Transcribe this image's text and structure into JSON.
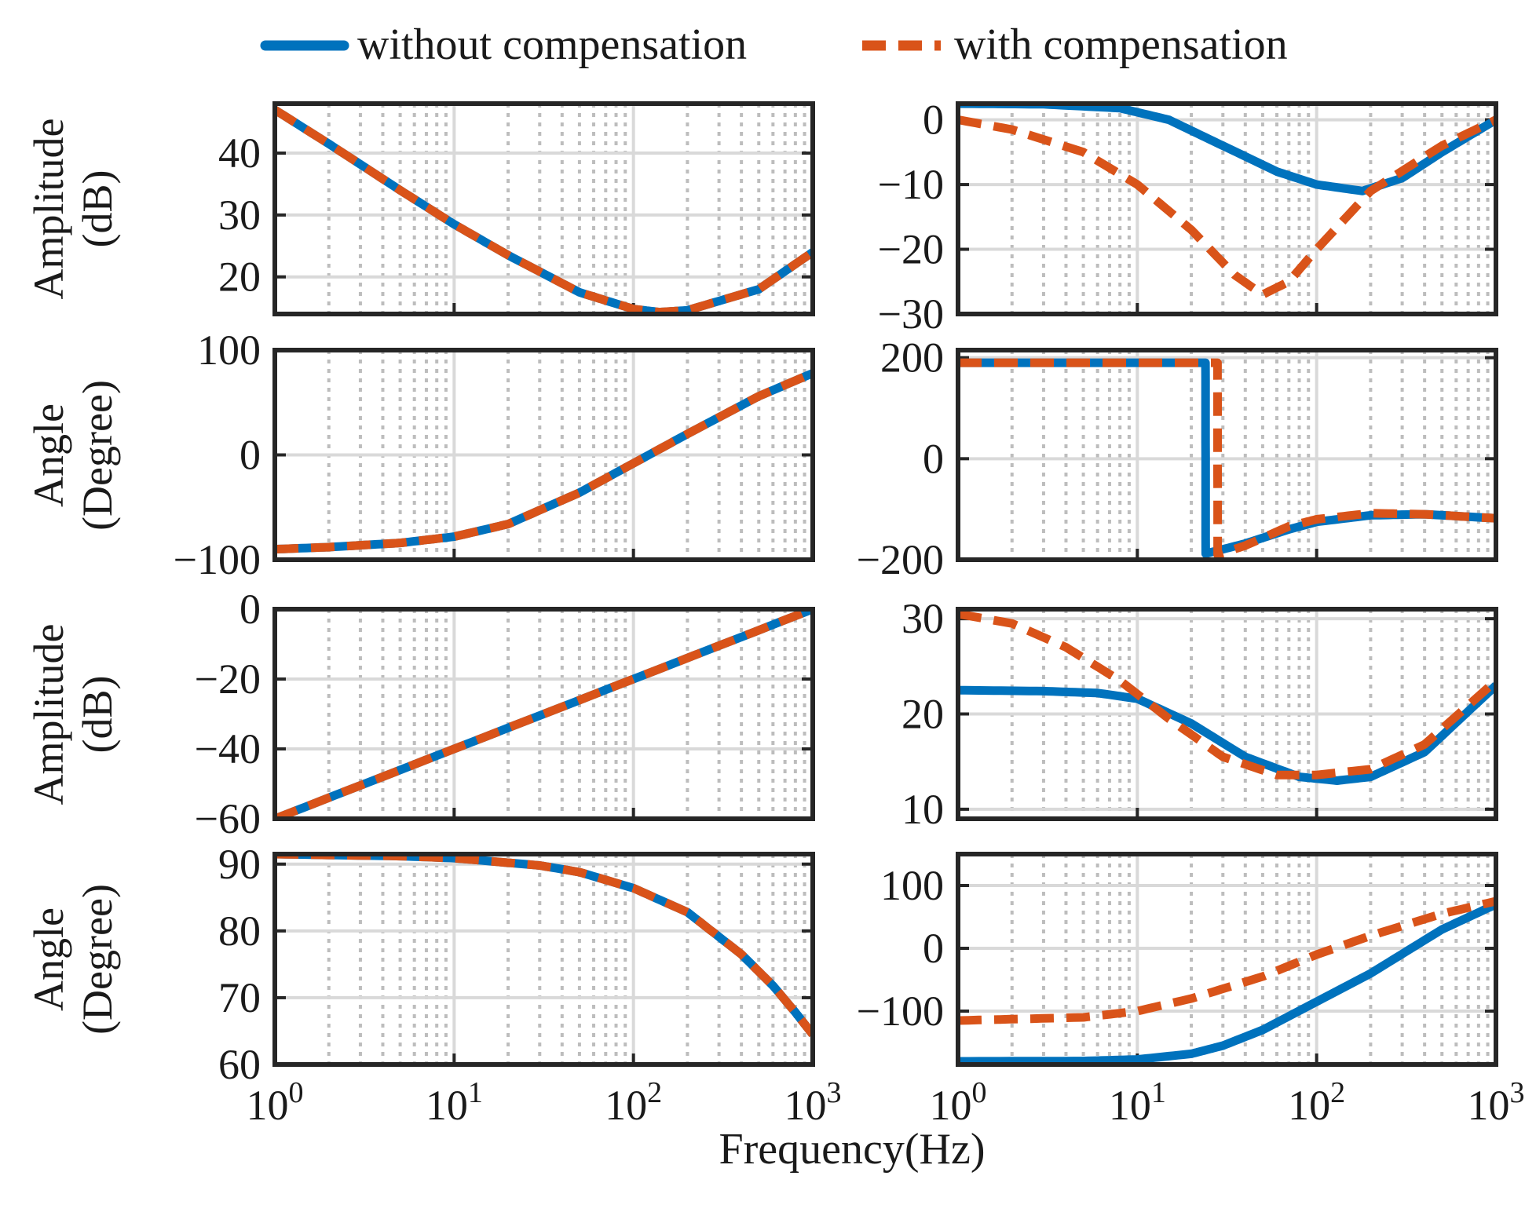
{
  "legend": {
    "position": "top-center",
    "items": [
      {
        "label": "without compensation",
        "color": "#0072BD",
        "style": "solid"
      },
      {
        "label": "with compensation",
        "color": "#D95319",
        "style": "dashed"
      }
    ]
  },
  "xlabel": "Frequency(Hz)",
  "row_labels": [
    {
      "line1": "Amplitude",
      "line2": "(dB)"
    },
    {
      "line1": "Angle",
      "line2": "(Degree)"
    },
    {
      "line1": "Amplitude",
      "line2": "(dB)"
    },
    {
      "line1": "Angle",
      "line2": "(Degree)"
    }
  ],
  "chart_data": [
    {
      "type": "line",
      "row": 0,
      "col": 0,
      "xscale": "log",
      "xlim": [
        1,
        1000
      ],
      "ylim": [
        14,
        48
      ],
      "yticks": [
        20,
        30,
        40
      ],
      "xticks": [
        {
          "base": "10",
          "exp": "0"
        },
        {
          "base": "10",
          "exp": "1"
        },
        {
          "base": "10",
          "exp": "2"
        },
        {
          "base": "10",
          "exp": "3"
        }
      ],
      "series": [
        {
          "name": "without compensation",
          "x": [
            1,
            2,
            5,
            10,
            20,
            50,
            100,
            140,
            200,
            500,
            1000
          ],
          "y": [
            47,
            41.5,
            34,
            28.5,
            23.5,
            17.5,
            14.8,
            14.3,
            14.6,
            18,
            24
          ]
        },
        {
          "name": "with compensation",
          "x": [
            1,
            2,
            5,
            10,
            20,
            50,
            100,
            140,
            200,
            500,
            1000
          ],
          "y": [
            47,
            41.5,
            34,
            28.5,
            23.5,
            17.5,
            14.8,
            14.3,
            14.6,
            18,
            24
          ]
        }
      ]
    },
    {
      "type": "line",
      "row": 0,
      "col": 1,
      "xscale": "log",
      "xlim": [
        1,
        1000
      ],
      "ylim": [
        -30,
        2.5
      ],
      "yticks": [
        -30,
        -20,
        -10,
        0
      ],
      "xticks": [
        {
          "base": "10",
          "exp": "0"
        },
        {
          "base": "10",
          "exp": "1"
        },
        {
          "base": "10",
          "exp": "2"
        },
        {
          "base": "10",
          "exp": "3"
        }
      ],
      "series": [
        {
          "name": "without compensation",
          "x": [
            1,
            3,
            8,
            15,
            30,
            60,
            100,
            180,
            300,
            500,
            1000
          ],
          "y": [
            2.5,
            2.4,
            1.8,
            0,
            -4,
            -8,
            -10,
            -11,
            -9,
            -5,
            0
          ]
        },
        {
          "name": "with compensation",
          "x": [
            1,
            2,
            5,
            10,
            20,
            35,
            50,
            70,
            100,
            200,
            500,
            1000
          ],
          "y": [
            0,
            -1.5,
            -5,
            -10,
            -17,
            -24,
            -27,
            -25,
            -20,
            -11,
            -4,
            0
          ]
        }
      ]
    },
    {
      "type": "line",
      "row": 1,
      "col": 0,
      "xscale": "log",
      "xlim": [
        1,
        1000
      ],
      "ylim": [
        -100,
        100
      ],
      "yticks": [
        -100,
        0,
        100
      ],
      "xticks": [
        {
          "base": "10",
          "exp": "0"
        },
        {
          "base": "10",
          "exp": "1"
        },
        {
          "base": "10",
          "exp": "2"
        },
        {
          "base": "10",
          "exp": "3"
        }
      ],
      "series": [
        {
          "name": "without compensation",
          "x": [
            1,
            2,
            5,
            10,
            20,
            50,
            100,
            200,
            500,
            1000
          ],
          "y": [
            -90,
            -88,
            -84,
            -78,
            -66,
            -36,
            -8,
            20,
            56,
            78
          ]
        },
        {
          "name": "with compensation",
          "x": [
            1,
            2,
            5,
            10,
            20,
            50,
            100,
            200,
            500,
            1000
          ],
          "y": [
            -90,
            -88,
            -84,
            -78,
            -66,
            -36,
            -8,
            20,
            56,
            78
          ]
        }
      ]
    },
    {
      "type": "line",
      "row": 1,
      "col": 1,
      "xscale": "log",
      "xlim": [
        1,
        1000
      ],
      "ylim": [
        -200,
        215
      ],
      "yticks": [
        -200,
        0,
        200
      ],
      "xticks": [
        {
          "base": "10",
          "exp": "0"
        },
        {
          "base": "10",
          "exp": "1"
        },
        {
          "base": "10",
          "exp": "2"
        },
        {
          "base": "10",
          "exp": "3"
        }
      ],
      "series": [
        {
          "name": "without compensation",
          "x": [
            1,
            24,
            24.05,
            40,
            70,
            100,
            200,
            400,
            1000
          ],
          "y": [
            190,
            190,
            -188,
            -168,
            -140,
            -125,
            -112,
            -110,
            -118
          ]
        },
        {
          "name": "with compensation",
          "x": [
            1,
            28,
            28.05,
            40,
            70,
            100,
            200,
            400,
            1000
          ],
          "y": [
            190,
            190,
            -190,
            -172,
            -134,
            -120,
            -108,
            -110,
            -118
          ]
        }
      ]
    },
    {
      "type": "line",
      "row": 2,
      "col": 0,
      "xscale": "log",
      "xlim": [
        1,
        1000
      ],
      "ylim": [
        -60,
        0
      ],
      "yticks": [
        -60,
        -40,
        -20,
        0
      ],
      "xticks": [
        {
          "base": "10",
          "exp": "0"
        },
        {
          "base": "10",
          "exp": "1"
        },
        {
          "base": "10",
          "exp": "2"
        },
        {
          "base": "10",
          "exp": "3"
        }
      ],
      "series": [
        {
          "name": "without compensation",
          "x": [
            1,
            10,
            100,
            1000
          ],
          "y": [
            -60,
            -40,
            -20,
            0
          ]
        },
        {
          "name": "with compensation",
          "x": [
            1,
            10,
            100,
            1000
          ],
          "y": [
            -60,
            -40,
            -20,
            0
          ]
        }
      ]
    },
    {
      "type": "line",
      "row": 2,
      "col": 1,
      "xscale": "log",
      "xlim": [
        1,
        1000
      ],
      "ylim": [
        9,
        31
      ],
      "yticks": [
        10,
        20,
        30
      ],
      "xticks": [
        {
          "base": "10",
          "exp": "0"
        },
        {
          "base": "10",
          "exp": "1"
        },
        {
          "base": "10",
          "exp": "2"
        },
        {
          "base": "10",
          "exp": "3"
        }
      ],
      "series": [
        {
          "name": "without compensation",
          "x": [
            1,
            3,
            6,
            10,
            20,
            40,
            80,
            130,
            200,
            400,
            1000
          ],
          "y": [
            22.5,
            22.4,
            22.2,
            21.6,
            19,
            15.5,
            13.4,
            13,
            13.4,
            16,
            23
          ]
        },
        {
          "name": "with compensation",
          "x": [
            1,
            2,
            4,
            8,
            15,
            30,
            60,
            100,
            200,
            400,
            1000
          ],
          "y": [
            30.5,
            29.5,
            27,
            23.5,
            19.5,
            15.5,
            13.6,
            13.6,
            14.2,
            16.8,
            23.5
          ]
        }
      ]
    },
    {
      "type": "line",
      "row": 3,
      "col": 0,
      "xscale": "log",
      "xlim": [
        1,
        1000
      ],
      "ylim": [
        60,
        91.5
      ],
      "yticks": [
        60,
        70,
        80,
        90
      ],
      "xticks": [
        {
          "base": "10",
          "exp": "0"
        },
        {
          "base": "10",
          "exp": "1"
        },
        {
          "base": "10",
          "exp": "2"
        },
        {
          "base": "10",
          "exp": "3"
        }
      ],
      "series": [
        {
          "name": "without compensation",
          "x": [
            1,
            5,
            10,
            30,
            50,
            100,
            200,
            400,
            600,
            800,
            1000
          ],
          "y": [
            91.5,
            91.2,
            90.9,
            89.8,
            88.8,
            86.4,
            82.8,
            76.5,
            71.8,
            67.8,
            64.5
          ]
        },
        {
          "name": "with compensation",
          "x": [
            1,
            5,
            10,
            30,
            50,
            100,
            200,
            400,
            600,
            800,
            1000
          ],
          "y": [
            91.5,
            91.2,
            90.9,
            89.8,
            88.8,
            86.4,
            82.8,
            76.5,
            71.8,
            67.8,
            64.5
          ]
        }
      ]
    },
    {
      "type": "line",
      "row": 3,
      "col": 1,
      "xscale": "log",
      "xlim": [
        1,
        1000
      ],
      "ylim": [
        -185,
        150
      ],
      "yticks": [
        -100,
        0,
        100
      ],
      "xticks": [
        {
          "base": "10",
          "exp": "0"
        },
        {
          "base": "10",
          "exp": "1"
        },
        {
          "base": "10",
          "exp": "2"
        },
        {
          "base": "10",
          "exp": "3"
        }
      ],
      "series": [
        {
          "name": "without compensation",
          "x": [
            1,
            5,
            10,
            20,
            30,
            50,
            100,
            200,
            500,
            1000
          ],
          "y": [
            -180,
            -179.5,
            -177,
            -168,
            -155,
            -130,
            -85,
            -40,
            30,
            70
          ]
        },
        {
          "name": "with compensation",
          "x": [
            1,
            5,
            10,
            20,
            50,
            100,
            200,
            500,
            1000
          ],
          "y": [
            -115,
            -110,
            -100,
            -80,
            -45,
            -10,
            20,
            55,
            75
          ]
        }
      ]
    }
  ]
}
